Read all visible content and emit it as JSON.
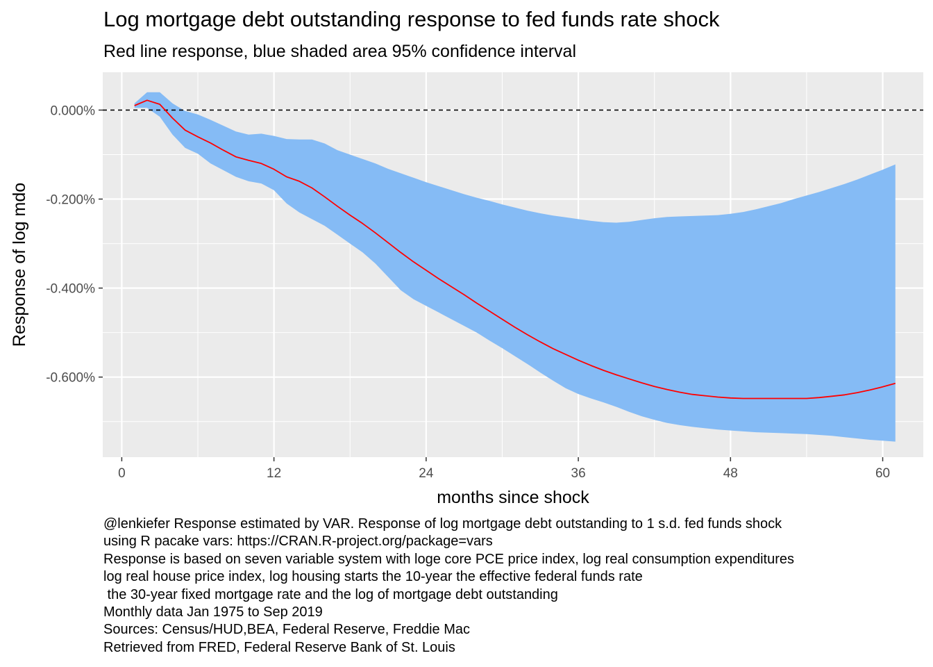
{
  "chart_data": {
    "type": "line",
    "title": "Log mortgage debt outstanding response to fed funds rate shock",
    "subtitle": "Red line response, blue shaded area 95% confidence interval",
    "xlabel": "months since shock",
    "ylabel": "Response of log mdo",
    "xlim": [
      -1.5,
      63.2
    ],
    "ylim": [
      -0.78,
      0.085
    ],
    "x_ticks": [
      0,
      12,
      24,
      36,
      48,
      60
    ],
    "x_tick_labels": [
      "0",
      "12",
      "24",
      "36",
      "48",
      "60"
    ],
    "y_ticks": [
      0,
      -0.2,
      -0.4,
      -0.6
    ],
    "y_tick_labels": [
      "0.000%",
      "-0.200%",
      "-0.400%",
      "-0.600%"
    ],
    "y_units": "percent",
    "zero_reference_line": {
      "y": 0,
      "style": "dashed",
      "color": "#000000"
    },
    "grid": true,
    "legend": "none",
    "x": [
      1,
      2,
      3,
      4,
      5,
      6,
      7,
      8,
      9,
      10,
      11,
      12,
      13,
      14,
      15,
      16,
      17,
      18,
      19,
      20,
      21,
      22,
      23,
      24,
      25,
      26,
      27,
      28,
      29,
      30,
      31,
      32,
      33,
      34,
      35,
      36,
      37,
      38,
      39,
      40,
      41,
      42,
      43,
      44,
      45,
      46,
      47,
      48,
      49,
      50,
      51,
      52,
      53,
      54,
      55,
      56,
      57,
      58,
      59,
      60,
      61
    ],
    "series": [
      {
        "name": "response",
        "color": "#ff0000",
        "values": [
          0.01,
          0.022,
          0.013,
          -0.018,
          -0.045,
          -0.06,
          -0.074,
          -0.09,
          -0.105,
          -0.113,
          -0.12,
          -0.133,
          -0.15,
          -0.16,
          -0.175,
          -0.195,
          -0.216,
          -0.236,
          -0.255,
          -0.276,
          -0.298,
          -0.32,
          -0.341,
          -0.36,
          -0.379,
          -0.397,
          -0.415,
          -0.434,
          -0.452,
          -0.47,
          -0.488,
          -0.505,
          -0.521,
          -0.536,
          -0.549,
          -0.562,
          -0.574,
          -0.585,
          -0.595,
          -0.604,
          -0.613,
          -0.621,
          -0.628,
          -0.634,
          -0.639,
          -0.642,
          -0.645,
          -0.647,
          -0.648,
          -0.648,
          -0.648,
          -0.648,
          -0.648,
          -0.648,
          -0.646,
          -0.643,
          -0.64,
          -0.635,
          -0.629,
          -0.622,
          -0.614
        ]
      },
      {
        "name": "upper",
        "values": [
          0.015,
          0.04,
          0.04,
          0.015,
          -0.002,
          -0.01,
          -0.022,
          -0.035,
          -0.048,
          -0.055,
          -0.053,
          -0.058,
          -0.065,
          -0.066,
          -0.066,
          -0.075,
          -0.09,
          -0.1,
          -0.11,
          -0.12,
          -0.132,
          -0.142,
          -0.152,
          -0.162,
          -0.171,
          -0.18,
          -0.189,
          -0.197,
          -0.204,
          -0.212,
          -0.219,
          -0.226,
          -0.232,
          -0.237,
          -0.241,
          -0.245,
          -0.249,
          -0.252,
          -0.253,
          -0.251,
          -0.247,
          -0.243,
          -0.24,
          -0.239,
          -0.238,
          -0.237,
          -0.236,
          -0.233,
          -0.229,
          -0.223,
          -0.216,
          -0.209,
          -0.2,
          -0.192,
          -0.184,
          -0.175,
          -0.166,
          -0.156,
          -0.145,
          -0.134,
          -0.122
        ]
      },
      {
        "name": "lower",
        "values": [
          0.005,
          0.005,
          -0.015,
          -0.055,
          -0.085,
          -0.098,
          -0.12,
          -0.135,
          -0.15,
          -0.16,
          -0.165,
          -0.18,
          -0.21,
          -0.23,
          -0.245,
          -0.26,
          -0.28,
          -0.3,
          -0.32,
          -0.345,
          -0.375,
          -0.405,
          -0.425,
          -0.44,
          -0.455,
          -0.47,
          -0.485,
          -0.5,
          -0.518,
          -0.535,
          -0.553,
          -0.571,
          -0.59,
          -0.608,
          -0.625,
          -0.638,
          -0.648,
          -0.657,
          -0.667,
          -0.678,
          -0.688,
          -0.696,
          -0.703,
          -0.708,
          -0.712,
          -0.715,
          -0.718,
          -0.72,
          -0.722,
          -0.724,
          -0.725,
          -0.726,
          -0.727,
          -0.728,
          -0.73,
          -0.732,
          -0.735,
          -0.738,
          -0.741,
          -0.743,
          -0.745
        ]
      }
    ],
    "colors": {
      "panel": "#ebebeb",
      "band": "#85bbf5",
      "line": "#ff0000"
    },
    "caption_lines": [
      "@lenkiefer Response estimated by VAR. Response of log mortgage debt outstanding to 1 s.d. fed funds shock",
      "using R pacake vars: https://CRAN.R-project.org/package=vars",
      "Response is based on seven variable system with loge core PCE price index, log real consumption expenditures",
      "log real house price index, log housing starts the 10-year the effective federal funds rate",
      " the 30-year fixed mortgage rate and the log of mortgage debt outstanding",
      "Monthly data Jan 1975 to Sep 2019",
      "Sources: Census/HUD,BEA, Federal Reserve, Freddie Mac",
      "Retrieved from FRED, Federal Reserve Bank of St. Louis"
    ]
  }
}
